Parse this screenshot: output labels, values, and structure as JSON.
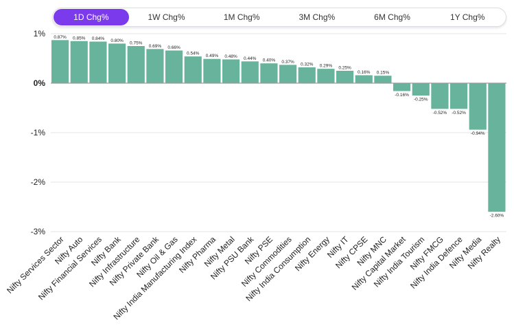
{
  "tabs": {
    "active_index": 0,
    "items": [
      {
        "label": "1D Chg%"
      },
      {
        "label": "1W Chg%"
      },
      {
        "label": "1M Chg%"
      },
      {
        "label": "3M Chg%"
      },
      {
        "label": "6M Chg%"
      },
      {
        "label": "1Y Chg%"
      }
    ]
  },
  "colors": {
    "accent": "#7c3aed",
    "bar": "#67b39b",
    "grid": "#e3e3e3",
    "zero_line": "#9a9a9a"
  },
  "chart_data": {
    "type": "bar",
    "title": "",
    "xlabel": "",
    "ylabel": "",
    "ylim": [
      -3,
      1
    ],
    "yticks": [
      1,
      0,
      -1,
      -2,
      -3
    ],
    "ytick_labels": [
      "1%",
      "0%",
      "-1%",
      "-2%",
      "-3%"
    ],
    "grid": true,
    "legend": "none",
    "categories": [
      "Nifty Services Sector",
      "Nifty Auto",
      "Nifty Financial Services",
      "Nifty Bank",
      "Nifty Infrastructure",
      "Nifty Private Bank",
      "Nifty Oil & Gas",
      "Nifty India Manufacturing Index",
      "Nifty Pharma",
      "Nifty Metal",
      "Nifty PSU Bank",
      "Nifty PSE",
      "Nifty Commodities",
      "Nifty India Consumption",
      "Nifty Energy",
      "Nifty IT",
      "Nifty CPSE",
      "Nifty MNC",
      "Nifty Capital Market",
      "Nifty India Tourism",
      "Nifty FMCG",
      "Nifty India Defence",
      "Nifty Media",
      "Nifty Realty"
    ],
    "values": [
      0.87,
      0.85,
      0.84,
      0.8,
      0.75,
      0.69,
      0.66,
      0.54,
      0.49,
      0.48,
      0.44,
      0.4,
      0.37,
      0.32,
      0.29,
      0.25,
      0.16,
      0.15,
      -0.16,
      -0.25,
      -0.52,
      -0.52,
      -0.94,
      -2.6
    ],
    "data_labels": [
      "0.87%",
      "0.85%",
      "0.84%",
      "0.80%",
      "0.75%",
      "0.69%",
      "0.66%",
      "0.54%",
      "0.49%",
      "0.48%",
      "0.44%",
      "0.40%",
      "0.37%",
      "0.32%",
      "0.29%",
      "0.25%",
      "0.16%",
      "0.15%",
      "-0.16%",
      "-0.25%",
      "-0.52%",
      "-0.52%",
      "-0.94%",
      "-2.60%"
    ]
  }
}
